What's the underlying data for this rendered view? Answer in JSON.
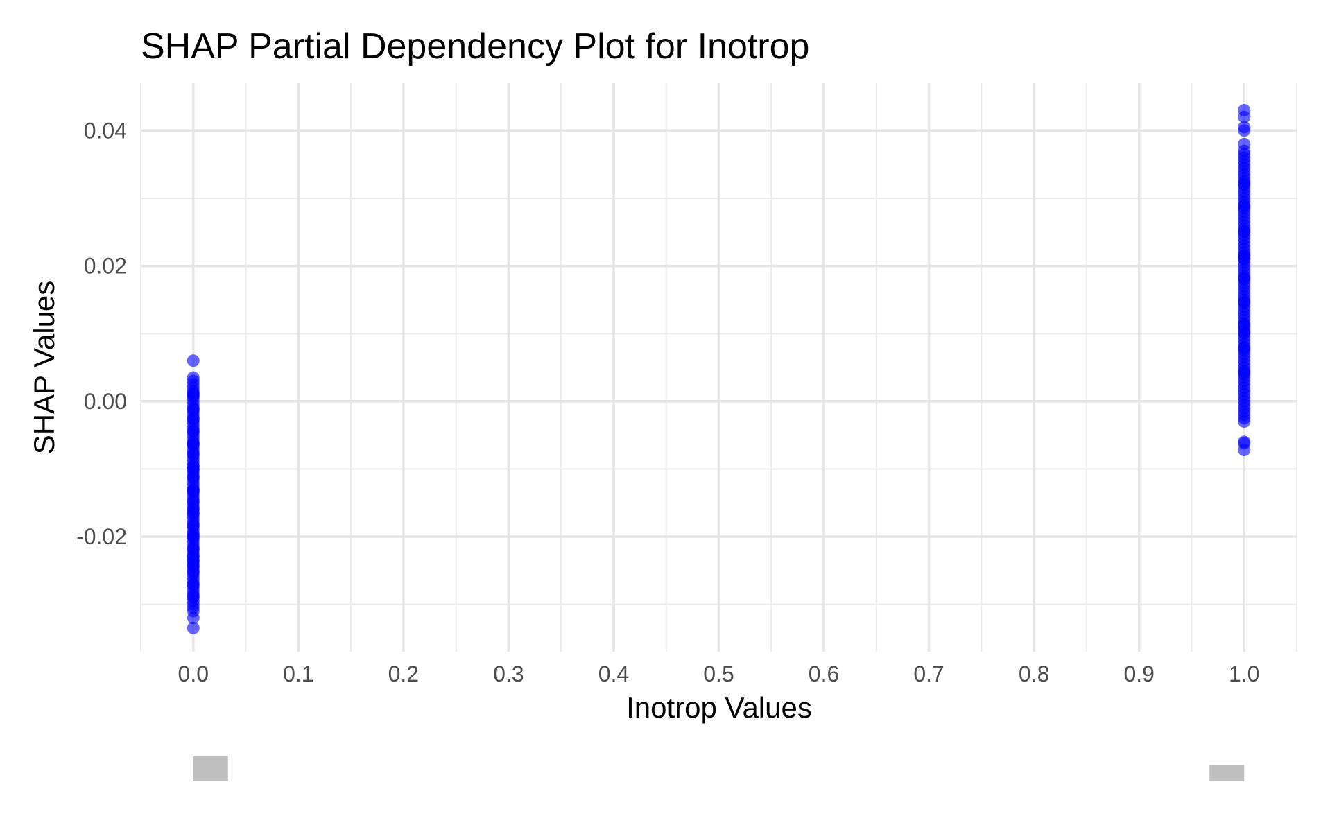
{
  "chart_data": {
    "type": "scatter",
    "title": "SHAP Partial Dependency Plot for Inotrop",
    "xlabel": "Inotrop Values",
    "ylabel": "SHAP Values",
    "xlim": [
      -0.05,
      1.05
    ],
    "ylim": [
      -0.037,
      0.047
    ],
    "x_ticks": [
      0.0,
      0.1,
      0.2,
      0.3,
      0.4,
      0.5,
      0.6,
      0.7,
      0.8,
      0.9,
      1.0
    ],
    "x_tick_labels": [
      "0.0",
      "0.1",
      "0.2",
      "0.3",
      "0.4",
      "0.5",
      "0.6",
      "0.7",
      "0.8",
      "0.9",
      "1.0"
    ],
    "y_ticks": [
      -0.02,
      0.0,
      0.02,
      0.04
    ],
    "y_tick_labels": [
      "-0.02",
      "0.00",
      "0.02",
      "0.04"
    ],
    "grid": true,
    "point_color": "#0000ff",
    "series": [
      {
        "x": [
          0,
          0,
          0,
          0,
          0,
          0,
          0,
          0,
          0,
          0,
          0,
          0,
          0,
          0,
          0,
          0,
          0,
          0,
          0,
          0,
          0,
          0,
          0,
          0,
          0,
          0,
          0,
          0,
          0,
          0,
          0,
          0,
          0,
          0,
          0,
          0,
          0,
          0,
          0,
          0,
          0,
          0,
          0,
          0,
          0,
          0,
          0,
          0,
          0,
          0,
          0,
          0,
          0,
          0,
          0,
          0,
          0,
          0,
          0,
          0,
          0,
          0,
          0,
          0,
          0,
          0,
          0,
          0,
          0,
          0,
          0,
          0,
          0,
          0,
          0,
          0,
          0,
          0,
          0,
          0,
          0,
          0,
          0,
          0,
          0,
          0,
          0,
          0,
          0,
          0,
          0,
          0,
          0,
          0,
          0,
          0,
          0,
          0,
          0
        ],
        "y": [
          0.006,
          0.0035,
          0.003,
          0.0025,
          0.002,
          0.0015,
          0.001,
          0.0005,
          0.0,
          -0.0005,
          -0.001,
          -0.0015,
          -0.002,
          -0.0025,
          -0.003,
          -0.0035,
          -0.004,
          -0.0045,
          -0.005,
          -0.0055,
          -0.006,
          -0.0065,
          -0.007,
          -0.0075,
          -0.008,
          -0.0085,
          -0.009,
          -0.0095,
          -0.01,
          -0.0105,
          -0.011,
          -0.0115,
          -0.012,
          -0.0125,
          -0.013,
          -0.0135,
          -0.014,
          -0.0145,
          -0.015,
          -0.0155,
          -0.016,
          -0.0165,
          -0.017,
          -0.0175,
          -0.018,
          -0.0185,
          -0.019,
          -0.0195,
          -0.02,
          -0.0205,
          -0.021,
          -0.0215,
          -0.022,
          -0.0225,
          -0.023,
          -0.0235,
          -0.024,
          -0.0245,
          -0.025,
          -0.0255,
          -0.026,
          -0.0265,
          -0.027,
          -0.0275,
          -0.028,
          -0.0285,
          -0.029,
          -0.0295,
          -0.03,
          -0.0305,
          -0.031,
          -0.032,
          -0.0335,
          -0.0012,
          -0.0044,
          -0.0078,
          -0.0112,
          -0.0148,
          -0.0183,
          -0.0218,
          -0.0252,
          -0.0288,
          0.0008,
          -0.0026,
          -0.0062,
          -0.0096,
          -0.0131,
          -0.0166,
          -0.0201,
          -0.0236,
          -0.0271,
          -0.0064,
          -0.0133,
          -0.0197,
          -0.0243,
          0.0012,
          -0.0101,
          -0.0159,
          -0.0229
        ],
        "name": ""
      },
      {
        "x": [
          1,
          1,
          1,
          1,
          1,
          1,
          1,
          1,
          1,
          1,
          1,
          1,
          1,
          1,
          1,
          1,
          1,
          1,
          1,
          1,
          1,
          1,
          1,
          1,
          1,
          1,
          1,
          1,
          1,
          1,
          1,
          1,
          1,
          1,
          1,
          1,
          1,
          1,
          1,
          1,
          1,
          1,
          1,
          1,
          1,
          1,
          1,
          1,
          1,
          1,
          1,
          1,
          1,
          1,
          1,
          1,
          1,
          1,
          1,
          1,
          1,
          1,
          1,
          1,
          1,
          1,
          1,
          1,
          1,
          1,
          1,
          1,
          1,
          1,
          1,
          1,
          1,
          1,
          1,
          1,
          1,
          1,
          1,
          1,
          1,
          1,
          1,
          1,
          1,
          1,
          1,
          1,
          1,
          1,
          1,
          1,
          1,
          1,
          1,
          1
        ],
        "y": [
          0.043,
          0.042,
          0.0405,
          0.04,
          0.038,
          0.037,
          0.0365,
          0.036,
          0.0355,
          0.035,
          0.0345,
          0.034,
          0.0335,
          0.033,
          0.0325,
          0.032,
          0.0315,
          0.031,
          0.0305,
          0.03,
          0.0295,
          0.029,
          0.0285,
          0.028,
          0.0275,
          0.027,
          0.0265,
          0.026,
          0.0255,
          0.025,
          0.0245,
          0.024,
          0.0235,
          0.023,
          0.0225,
          0.022,
          0.0215,
          0.021,
          0.0205,
          0.02,
          0.0195,
          0.019,
          0.0185,
          0.018,
          0.0175,
          0.017,
          0.0165,
          0.016,
          0.0155,
          0.015,
          0.0145,
          0.014,
          0.0135,
          0.013,
          0.0125,
          0.012,
          0.0115,
          0.011,
          0.0105,
          0.01,
          0.0095,
          0.009,
          0.0085,
          0.008,
          0.0075,
          0.007,
          0.0065,
          0.006,
          0.0055,
          0.005,
          0.0045,
          0.004,
          0.0035,
          0.003,
          0.0025,
          0.002,
          0.0015,
          0.001,
          0.0005,
          0.0,
          -0.0005,
          -0.001,
          -0.0015,
          -0.002,
          -0.0025,
          -0.003,
          -0.006,
          -0.0062,
          -0.0072,
          0.0322,
          0.0288,
          0.0251,
          0.0216,
          0.0182,
          0.0147,
          0.0113,
          0.0078,
          0.0043,
          0.0211,
          0.0102
        ],
        "name": ""
      }
    ],
    "marginal_bars": [
      {
        "x": 0.0,
        "height": 3
      },
      {
        "x": 1.0,
        "height": 2
      }
    ]
  }
}
